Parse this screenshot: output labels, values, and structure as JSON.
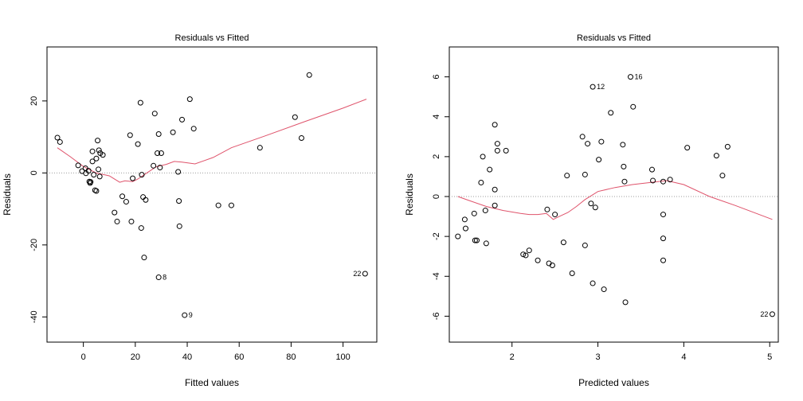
{
  "chart_data": [
    {
      "type": "scatter",
      "title": "Residuals vs Fitted",
      "xlabel": "Fitted values",
      "ylabel": "Residuals",
      "xlim": [
        -14,
        113
      ],
      "ylim": [
        -47,
        35
      ],
      "xticks": [
        0,
        20,
        40,
        60,
        80,
        100
      ],
      "xtick_labels": [
        "0",
        "20",
        "40",
        "60",
        "80",
        "100"
      ],
      "yticks": [
        -40,
        -20,
        0,
        20
      ],
      "ytick_labels": [
        "-40",
        "-20",
        "0",
        "20"
      ],
      "reference_line": 0,
      "points": [
        [
          -10,
          9.8
        ],
        [
          -9,
          8.6
        ],
        [
          -2,
          2.1
        ],
        [
          -0.5,
          0.5
        ],
        [
          0.8,
          1.3
        ],
        [
          1,
          -0.1
        ],
        [
          2,
          0.6
        ],
        [
          2.3,
          -2.4
        ],
        [
          2.6,
          -2.8
        ],
        [
          2.8,
          -2.5
        ],
        [
          3.5,
          6
        ],
        [
          3.5,
          3.2
        ],
        [
          4,
          -0.5
        ],
        [
          4.5,
          -4.8
        ],
        [
          5,
          -5
        ],
        [
          5,
          4
        ],
        [
          5.5,
          9
        ],
        [
          5.8,
          1
        ],
        [
          6,
          6.3
        ],
        [
          6.3,
          -1
        ],
        [
          6.5,
          5.5
        ],
        [
          7.5,
          5
        ],
        [
          12,
          -11
        ],
        [
          13,
          -13.5
        ],
        [
          15,
          -6.5
        ],
        [
          16.5,
          -8
        ],
        [
          18,
          10.5
        ],
        [
          18.5,
          -13.5
        ],
        [
          19,
          -1.5
        ],
        [
          21,
          8
        ],
        [
          22,
          19.5
        ],
        [
          22.5,
          -0.5
        ],
        [
          22.3,
          -15.3
        ],
        [
          23,
          -6.7
        ],
        [
          23.4,
          -23.5
        ],
        [
          24,
          -7.5
        ],
        [
          27,
          2
        ],
        [
          27.5,
          16.5
        ],
        [
          28.5,
          5.5
        ],
        [
          29,
          10.8
        ],
        [
          29.5,
          1.5
        ],
        [
          30,
          5.5
        ],
        [
          34.5,
          11.3
        ],
        [
          36.5,
          0.3
        ],
        [
          36.8,
          -7.8
        ],
        [
          37,
          -14.8
        ],
        [
          38,
          14.8
        ],
        [
          41,
          20.5
        ],
        [
          42.5,
          12.3
        ],
        [
          52,
          -9
        ],
        [
          57,
          -9
        ],
        [
          68,
          7
        ],
        [
          81.5,
          15.5
        ],
        [
          84,
          9.7
        ],
        [
          87,
          27.2
        ],
        [
          29,
          -29
        ],
        [
          39,
          -39.5
        ],
        [
          108.5,
          -28
        ]
      ],
      "labels": [
        {
          "text": "8",
          "x": 29,
          "y": -29
        },
        {
          "text": "9",
          "x": 39,
          "y": -39.5
        },
        {
          "text": "22",
          "x": 108.5,
          "y": -28
        }
      ],
      "smooth_line": [
        [
          -10,
          7
        ],
        [
          -5,
          4.5
        ],
        [
          0,
          1.8
        ],
        [
          5,
          0
        ],
        [
          10,
          -0.8
        ],
        [
          14,
          -2.6
        ],
        [
          16,
          -2.2
        ],
        [
          19,
          -2.4
        ],
        [
          21,
          -1.7
        ],
        [
          24,
          -0.2
        ],
        [
          28,
          1.7
        ],
        [
          32,
          2.4
        ],
        [
          35,
          3.2
        ],
        [
          38,
          3
        ],
        [
          43,
          2.5
        ],
        [
          50,
          4.3
        ],
        [
          57,
          7
        ],
        [
          70,
          10.3
        ],
        [
          85,
          14.2
        ],
        [
          100,
          18
        ],
        [
          109,
          20.5
        ]
      ]
    },
    {
      "type": "scatter",
      "title": "Residuals vs Fitted",
      "xlabel": "Predicted values",
      "ylabel": "Residuals",
      "xlim": [
        1.27,
        5.1
      ],
      "ylim": [
        -7.3,
        7.5
      ],
      "xticks": [
        2,
        3,
        4,
        5
      ],
      "xtick_labels": [
        "2",
        "3",
        "4",
        "5"
      ],
      "yticks": [
        -6,
        -4,
        -2,
        0,
        2,
        4,
        6
      ],
      "ytick_labels": [
        "-6",
        "-4",
        "-2",
        "0",
        "2",
        "4",
        "6"
      ],
      "reference_line": 0,
      "points": [
        [
          1.37,
          -2
        ],
        [
          1.45,
          -1.15
        ],
        [
          1.46,
          -1.6
        ],
        [
          1.56,
          -0.85
        ],
        [
          1.57,
          -2.2
        ],
        [
          1.59,
          -2.2
        ],
        [
          1.64,
          0.7
        ],
        [
          1.66,
          2
        ],
        [
          1.69,
          -0.7
        ],
        [
          1.7,
          -2.35
        ],
        [
          1.74,
          1.35
        ],
        [
          1.8,
          3.6
        ],
        [
          1.8,
          0.35
        ],
        [
          1.8,
          -0.45
        ],
        [
          1.83,
          2.65
        ],
        [
          1.83,
          2.3
        ],
        [
          1.93,
          2.3
        ],
        [
          2.13,
          -2.9
        ],
        [
          2.16,
          -2.95
        ],
        [
          2.2,
          -2.7
        ],
        [
          2.3,
          -3.2
        ],
        [
          2.41,
          -0.65
        ],
        [
          2.43,
          -3.35
        ],
        [
          2.47,
          -3.45
        ],
        [
          2.5,
          -0.9
        ],
        [
          2.6,
          -2.3
        ],
        [
          2.64,
          1.05
        ],
        [
          2.7,
          -3.85
        ],
        [
          2.82,
          3
        ],
        [
          2.85,
          1.1
        ],
        [
          2.85,
          -2.45
        ],
        [
          2.88,
          2.65
        ],
        [
          2.92,
          -0.35
        ],
        [
          2.94,
          -4.35
        ],
        [
          2.97,
          -0.55
        ],
        [
          3.01,
          1.85
        ],
        [
          3.04,
          2.75
        ],
        [
          3.07,
          -4.65
        ],
        [
          3.15,
          4.2
        ],
        [
          3.29,
          2.6
        ],
        [
          3.3,
          1.5
        ],
        [
          3.31,
          0.75
        ],
        [
          3.32,
          -5.3
        ],
        [
          3.41,
          4.5
        ],
        [
          3.63,
          1.35
        ],
        [
          3.64,
          0.8
        ],
        [
          3.76,
          0.75
        ],
        [
          3.76,
          -0.9
        ],
        [
          3.76,
          -2.1
        ],
        [
          3.76,
          -3.2
        ],
        [
          3.84,
          0.85
        ],
        [
          4.04,
          2.45
        ],
        [
          4.38,
          2.05
        ],
        [
          4.45,
          1.05
        ],
        [
          4.51,
          2.5
        ],
        [
          2.94,
          5.5
        ],
        [
          3.38,
          6
        ],
        [
          5.03,
          -5.9
        ]
      ],
      "labels": [
        {
          "text": "12",
          "x": 2.94,
          "y": 5.5
        },
        {
          "text": "16",
          "x": 3.38,
          "y": 6
        },
        {
          "text": "22",
          "x": 5.03,
          "y": -5.9
        }
      ],
      "smooth_line": [
        [
          1.37,
          0
        ],
        [
          1.5,
          -0.2
        ],
        [
          1.7,
          -0.5
        ],
        [
          1.9,
          -0.7
        ],
        [
          2.1,
          -0.85
        ],
        [
          2.2,
          -0.9
        ],
        [
          2.3,
          -0.9
        ],
        [
          2.4,
          -0.85
        ],
        [
          2.48,
          -1.15
        ],
        [
          2.55,
          -1
        ],
        [
          2.65,
          -0.8
        ],
        [
          2.75,
          -0.5
        ],
        [
          2.85,
          -0.15
        ],
        [
          3,
          0.25
        ],
        [
          3.2,
          0.45
        ],
        [
          3.4,
          0.6
        ],
        [
          3.6,
          0.7
        ],
        [
          3.8,
          0.8
        ],
        [
          4,
          0.6
        ],
        [
          4.3,
          0
        ],
        [
          4.6,
          -0.45
        ],
        [
          5.03,
          -1.15
        ]
      ]
    }
  ]
}
